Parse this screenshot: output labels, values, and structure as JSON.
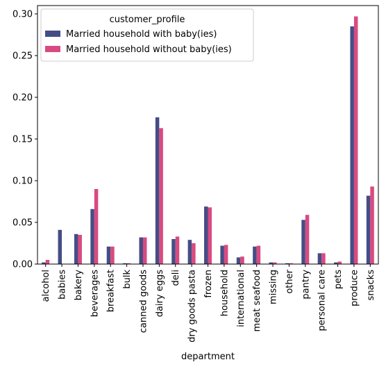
{
  "chart_data": {
    "type": "bar",
    "title": "",
    "xlabel": "department",
    "ylabel": "",
    "ylim": [
      0,
      0.31
    ],
    "yticks": [
      "0.00",
      "0.05",
      "0.10",
      "0.15",
      "0.20",
      "0.25",
      "0.30"
    ],
    "ytick_values": [
      0,
      0.05,
      0.1,
      0.15,
      0.2,
      0.25,
      0.3
    ],
    "categories": [
      "alcohol",
      "babies",
      "bakery",
      "beverages",
      "breakfast",
      "bulk",
      "canned goods",
      "dairy eggs",
      "deli",
      "dry goods pasta",
      "frozen",
      "household",
      "international",
      "meat seafood",
      "missing",
      "other",
      "pantry",
      "personal care",
      "pets",
      "produce",
      "snacks"
    ],
    "legend_title": "customer_profile",
    "legend_position": "upper-left",
    "series": [
      {
        "name": "Married household with baby(ies)",
        "color": "#454d85",
        "values": [
          0.002,
          0.041,
          0.036,
          0.066,
          0.021,
          0.001,
          0.032,
          0.176,
          0.03,
          0.029,
          0.069,
          0.022,
          0.008,
          0.021,
          0.002,
          0.001,
          0.053,
          0.013,
          0.002,
          0.285,
          0.082
        ]
      },
      {
        "name": "Married household without baby(ies)",
        "color": "#d94a80",
        "values": [
          0.005,
          0.0,
          0.035,
          0.09,
          0.021,
          0.001,
          0.032,
          0.163,
          0.033,
          0.025,
          0.068,
          0.023,
          0.009,
          0.022,
          0.002,
          0.001,
          0.059,
          0.013,
          0.003,
          0.297,
          0.093
        ]
      }
    ]
  }
}
